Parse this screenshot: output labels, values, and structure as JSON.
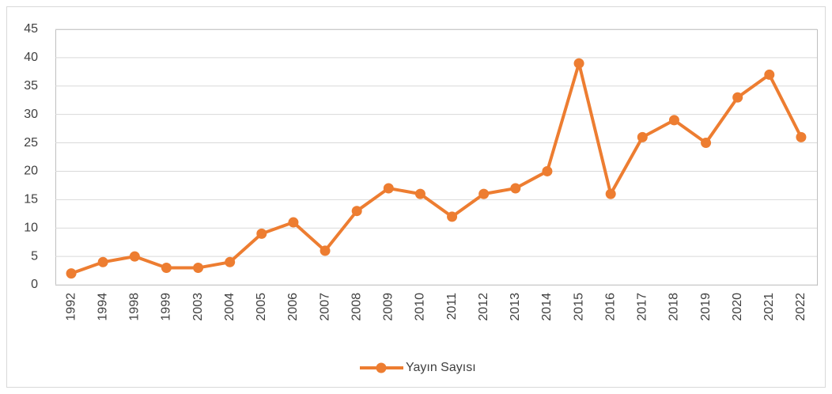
{
  "chart_data": {
    "type": "line",
    "categories": [
      "1992",
      "1994",
      "1998",
      "1999",
      "2003",
      "2004",
      "2005",
      "2006",
      "2007",
      "2008",
      "2009",
      "2010",
      "2011",
      "2012",
      "2013",
      "2014",
      "2015",
      "2016",
      "2017",
      "2018",
      "2019",
      "2020",
      "2021",
      "2022"
    ],
    "series": [
      {
        "name": "Yayın Sayısı",
        "color": "#ed7d31",
        "values": [
          2,
          4,
          5,
          3,
          3,
          4,
          9,
          11,
          6,
          13,
          17,
          16,
          12,
          16,
          17,
          20,
          39,
          16,
          26,
          29,
          25,
          33,
          37,
          26
        ]
      }
    ],
    "ylim": [
      0,
      45
    ],
    "yticks": [
      0,
      5,
      10,
      15,
      20,
      25,
      30,
      35,
      40,
      45
    ],
    "grid": true,
    "legend": "bottom"
  }
}
